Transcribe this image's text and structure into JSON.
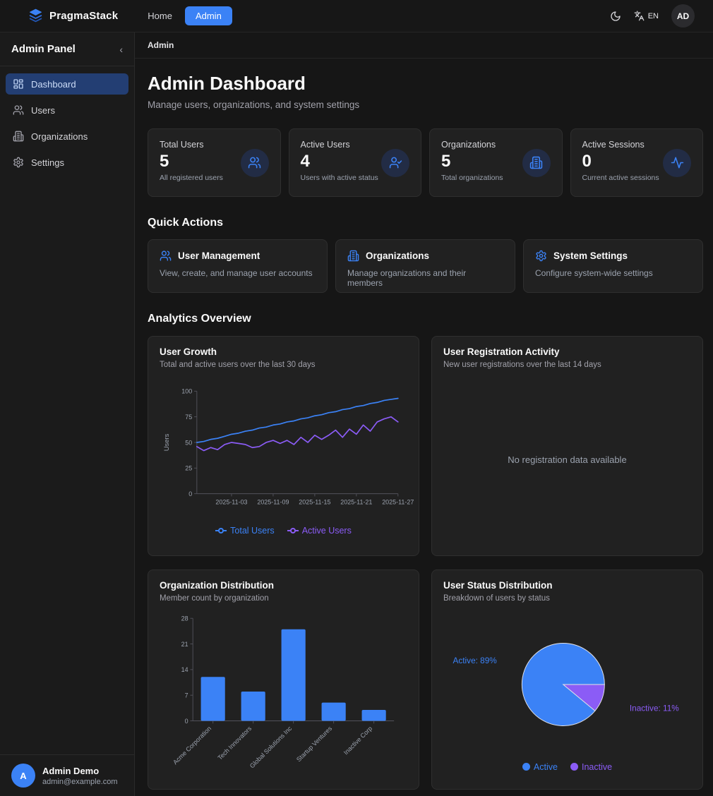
{
  "navbar": {
    "brand": "PragmaStack",
    "links": {
      "home": "Home",
      "admin": "Admin"
    },
    "language": "EN",
    "avatar_initials": "AD"
  },
  "sidebar": {
    "title": "Admin Panel",
    "collapse_glyph": "‹",
    "items": [
      {
        "label": "Dashboard"
      },
      {
        "label": "Users"
      },
      {
        "label": "Organizations"
      },
      {
        "label": "Settings"
      }
    ],
    "user": {
      "initial": "A",
      "name": "Admin Demo",
      "email": "admin@example.com"
    }
  },
  "breadcrumb": "Admin",
  "header": {
    "title": "Admin Dashboard",
    "subtitle": "Manage users, organizations, and system settings"
  },
  "stats": [
    {
      "label": "Total Users",
      "value": "5",
      "description": "All registered users",
      "icon": "users-icon"
    },
    {
      "label": "Active Users",
      "value": "4",
      "description": "Users with active status",
      "icon": "user-check-icon"
    },
    {
      "label": "Organizations",
      "value": "5",
      "description": "Total organizations",
      "icon": "building-icon"
    },
    {
      "label": "Active Sessions",
      "value": "0",
      "description": "Current active sessions",
      "icon": "activity-icon"
    }
  ],
  "quick_actions": {
    "heading": "Quick Actions",
    "items": [
      {
        "title": "User Management",
        "description": "View, create, and manage user accounts",
        "icon": "users-icon"
      },
      {
        "title": "Organizations",
        "description": "Manage organizations and their members",
        "icon": "building-icon"
      },
      {
        "title": "System Settings",
        "description": "Configure system-wide settings",
        "icon": "gear-icon"
      }
    ]
  },
  "analytics_heading": "Analytics Overview",
  "colors": {
    "blue": "#3b82f6",
    "purple": "#8b5cf6",
    "axis": "#52525b",
    "tick_text": "#9ca3af"
  },
  "chart_data": [
    {
      "id": "user-growth",
      "type": "line",
      "title": "User Growth",
      "subtitle": "Total and active users over the last 30 days",
      "ylabel": "Users",
      "ylim": [
        0,
        100
      ],
      "yticks": [
        0,
        25,
        50,
        75,
        100
      ],
      "legend_position": "bottom",
      "grid": false,
      "x": [
        "2025-10-29",
        "2025-10-30",
        "2025-10-31",
        "2025-11-01",
        "2025-11-02",
        "2025-11-03",
        "2025-11-04",
        "2025-11-05",
        "2025-11-06",
        "2025-11-07",
        "2025-11-08",
        "2025-11-09",
        "2025-11-10",
        "2025-11-11",
        "2025-11-12",
        "2025-11-13",
        "2025-11-14",
        "2025-11-15",
        "2025-11-16",
        "2025-11-17",
        "2025-11-18",
        "2025-11-19",
        "2025-11-20",
        "2025-11-21",
        "2025-11-22",
        "2025-11-23",
        "2025-11-24",
        "2025-11-25",
        "2025-11-26",
        "2025-11-27"
      ],
      "xtick_labels": [
        "2025-11-03",
        "2025-11-09",
        "2025-11-15",
        "2025-11-21",
        "2025-11-27"
      ],
      "series": [
        {
          "name": "Total Users",
          "color": "#3b82f6",
          "values": [
            50,
            51,
            53,
            54,
            56,
            58,
            59,
            61,
            62,
            64,
            65,
            67,
            68,
            70,
            71,
            73,
            74,
            76,
            77,
            79,
            80,
            82,
            83,
            85,
            86,
            88,
            89,
            91,
            92,
            93
          ]
        },
        {
          "name": "Active Users",
          "color": "#8b5cf6",
          "values": [
            46,
            42,
            45,
            43,
            48,
            50,
            49,
            48,
            45,
            46,
            50,
            52,
            49,
            52,
            48,
            55,
            50,
            57,
            53,
            57,
            62,
            55,
            63,
            58,
            67,
            61,
            70,
            73,
            75,
            70
          ]
        }
      ]
    },
    {
      "id": "registrations",
      "type": "line",
      "title": "User Registration Activity",
      "subtitle": "New user registrations over the last 14 days",
      "empty_message": "No registration data available"
    },
    {
      "id": "org-distribution",
      "type": "bar",
      "title": "Organization Distribution",
      "subtitle": "Member count by organization",
      "categories": [
        "Acme Corporation",
        "Tech Innovators",
        "Global Solutions Inc",
        "Startup Ventures",
        "Inactive Corp"
      ],
      "values": [
        12,
        8,
        25,
        5,
        3
      ],
      "ylim": [
        0,
        28
      ],
      "yticks": [
        0,
        7,
        14,
        21,
        28
      ],
      "bar_color": "#3b82f6"
    },
    {
      "id": "status-distribution",
      "type": "pie",
      "title": "User Status Distribution",
      "subtitle": "Breakdown of users by status",
      "slices": [
        {
          "name": "Active",
          "pct": 89,
          "color": "#3b82f6"
        },
        {
          "name": "Inactive",
          "pct": 11,
          "color": "#8b5cf6"
        }
      ]
    }
  ]
}
